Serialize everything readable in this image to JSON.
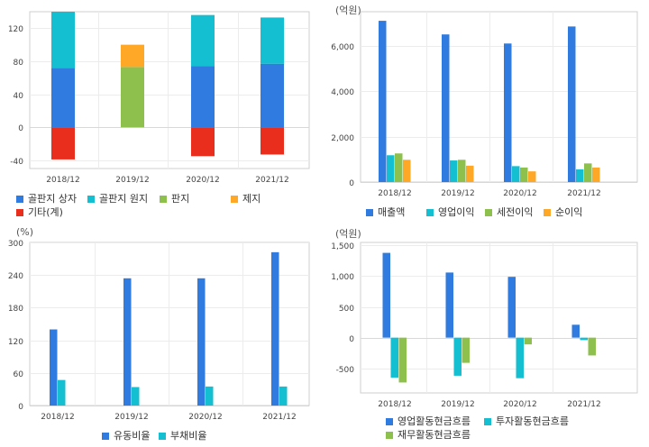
{
  "chart_data": [
    {
      "id": "c1",
      "type": "bar",
      "stacked": true,
      "unit": "",
      "categories": [
        "2018/12",
        "2019/12",
        "2020/12",
        "2021/12"
      ],
      "series": [
        {
          "name": "골판지 상자",
          "color": "#2f7be0",
          "values": [
            72,
            0,
            74,
            77
          ]
        },
        {
          "name": "골판지 원지",
          "color": "#13bfd0",
          "values": [
            68,
            0,
            62,
            56
          ]
        },
        {
          "name": "판지",
          "color": "#8dc04d",
          "values": [
            0,
            73,
            0,
            0
          ]
        },
        {
          "name": "제지",
          "color": "#ffa727",
          "values": [
            0,
            27,
            0,
            0
          ]
        },
        {
          "name": "기타(계)",
          "color": "#ea2e1e",
          "values": [
            -39,
            0,
            -35,
            -33
          ]
        }
      ],
      "ylim": [
        -50,
        140
      ],
      "yticks": [
        -40,
        0,
        40,
        80,
        120
      ],
      "ytick_labels": [
        "-40",
        "0",
        "40",
        "80",
        "120"
      ],
      "grid": true,
      "legend": "bottom"
    },
    {
      "id": "c2",
      "type": "bar",
      "unit": "(억원)",
      "categories": [
        "2018/12",
        "2019/12",
        "2020/12",
        "2021/12"
      ],
      "series": [
        {
          "name": "매출액",
          "color": "#2f7be0",
          "values": [
            7100,
            6500,
            6100,
            6850
          ]
        },
        {
          "name": "영업이익",
          "color": "#13bfd0",
          "values": [
            1180,
            950,
            700,
            560
          ]
        },
        {
          "name": "세전이익",
          "color": "#8dc04d",
          "values": [
            1260,
            980,
            640,
            820
          ]
        },
        {
          "name": "순이익",
          "color": "#ffa727",
          "values": [
            980,
            720,
            470,
            640
          ]
        }
      ],
      "ylim": [
        0,
        7500
      ],
      "yticks": [
        0,
        2000,
        4000,
        6000
      ],
      "ytick_labels": [
        "0",
        "2,000",
        "4,000",
        "6,000"
      ],
      "grid": true,
      "legend": "bottom"
    },
    {
      "id": "c3",
      "type": "bar",
      "unit": "(%)",
      "categories": [
        "2018/12",
        "2019/12",
        "2020/12",
        "2021/12"
      ],
      "series": [
        {
          "name": "유동비율",
          "color": "#2f7be0",
          "values": [
            140,
            234,
            234,
            282
          ]
        },
        {
          "name": "부채비율",
          "color": "#13bfd0",
          "values": [
            47,
            34,
            35,
            35
          ]
        }
      ],
      "ylim": [
        0,
        300
      ],
      "yticks": [
        0,
        60,
        120,
        180,
        240,
        300
      ],
      "ytick_labels": [
        "0",
        "60",
        "120",
        "180",
        "240",
        "300"
      ],
      "grid": true,
      "legend": "bottom"
    },
    {
      "id": "c4",
      "type": "bar",
      "unit": "(억원)",
      "categories": [
        "2018/12",
        "2019/12",
        "2020/12",
        "2021/12"
      ],
      "series": [
        {
          "name": "영업활동현금흐름",
          "color": "#2f7be0",
          "values": [
            1380,
            1060,
            990,
            210
          ]
        },
        {
          "name": "투자활동현금흐름",
          "color": "#13bfd0",
          "values": [
            -650,
            -620,
            -660,
            -40
          ]
        },
        {
          "name": "재무활동현금흐름",
          "color": "#8dc04d",
          "values": [
            -730,
            -410,
            -110,
            -290
          ]
        }
      ],
      "ylim": [
        -900,
        1550
      ],
      "yticks": [
        -500,
        0,
        500,
        1000,
        1500
      ],
      "ytick_labels": [
        "-500",
        "0",
        "500",
        "1,000",
        "1,500"
      ],
      "grid": true,
      "legend": "bottom"
    }
  ]
}
